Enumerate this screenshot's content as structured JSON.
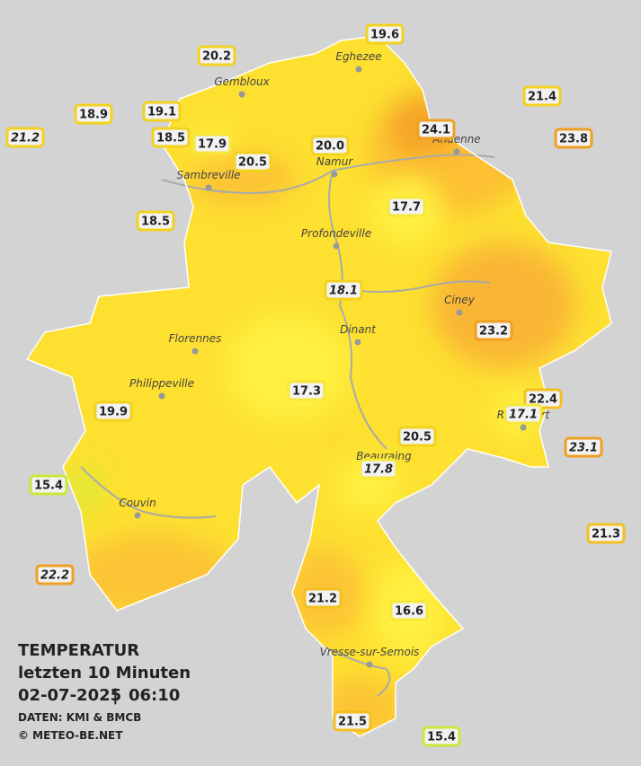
{
  "legend": {
    "title": "TEMPERATUR",
    "subtitle": "letzten 10 Minuten",
    "date": "02-07-2025",
    "time": "06:10",
    "source": "DATEN: KMI & BMCB",
    "copyright": "© METEO-BE.NET"
  },
  "cities": [
    "Eghezee",
    "Gembloux",
    "Andenne",
    "Namur",
    "Sambreville",
    "Profondeville",
    "Ciney",
    "Dinant",
    "Florennes",
    "Philippeville",
    "Rochefort",
    "Beauraing",
    "Couvin",
    "Vresse-sur-Semois"
  ],
  "stations": [
    {
      "label": "19.6",
      "color": "#f2d21e"
    },
    {
      "label": "20.2",
      "color": "#f2d21e"
    },
    {
      "label": "21.4",
      "color": "#f2d21e"
    },
    {
      "label": "18.9",
      "color": "#f2d21e"
    },
    {
      "label": "19.1",
      "color": "#f2d21e"
    },
    {
      "label": "21.2",
      "color": "#f2d21e",
      "italic": true
    },
    {
      "label": "24.1",
      "color": "#f0a020"
    },
    {
      "label": "23.8",
      "color": "#f0a020"
    },
    {
      "label": "18.5",
      "color": "#f2d21e"
    },
    {
      "label": "17.9",
      "color": "#f5e83a"
    },
    {
      "label": "20.0",
      "color": "#f2d21e"
    },
    {
      "label": "20.5",
      "color": "#f2d21e"
    },
    {
      "label": "17.7",
      "color": "#f5e83a"
    },
    {
      "label": "18.5",
      "color": "#f2d21e"
    },
    {
      "label": "18.1",
      "color": "#f2d21e",
      "italic": true
    },
    {
      "label": "23.2",
      "color": "#f0a020"
    },
    {
      "label": "17.3",
      "color": "#f5e83a"
    },
    {
      "label": "22.4",
      "color": "#f2c020"
    },
    {
      "label": "17.1",
      "color": "#f5e83a",
      "italic": true
    },
    {
      "label": "19.9",
      "color": "#f2d21e"
    },
    {
      "label": "20.5",
      "color": "#f2d21e"
    },
    {
      "label": "23.1",
      "color": "#f0a020",
      "italic": true
    },
    {
      "label": "17.8",
      "color": "#f5e83a",
      "italic": true
    },
    {
      "label": "15.4",
      "color": "#c8e83a"
    },
    {
      "label": "21.3",
      "color": "#f2c020"
    },
    {
      "label": "22.2",
      "color": "#f0a020",
      "italic": true
    },
    {
      "label": "21.2",
      "color": "#f2c020"
    },
    {
      "label": "16.6",
      "color": "#f5e83a"
    },
    {
      "label": "21.5",
      "color": "#f2c020"
    },
    {
      "label": "15.4",
      "color": "#c8e83a"
    }
  ]
}
